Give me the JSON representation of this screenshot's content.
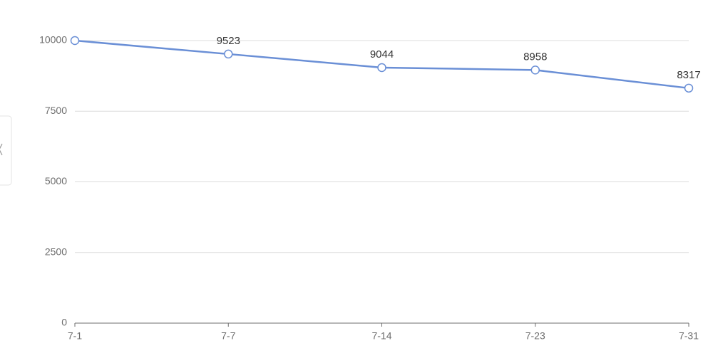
{
  "chart_data": {
    "type": "line",
    "categories": [
      "7-1",
      "7-7",
      "7-14",
      "7-23",
      "7-31"
    ],
    "series": [
      {
        "color": "#6a8fd6",
        "values": [
          10000,
          9523,
          9044,
          8958,
          8317
        ],
        "value_labels": [
          null,
          "9523",
          "9044",
          "8958",
          "8317"
        ]
      }
    ],
    "ylim": [
      0,
      10000
    ],
    "yticks": [
      0,
      2500,
      5000,
      7500,
      10000
    ],
    "grid": true
  }
}
